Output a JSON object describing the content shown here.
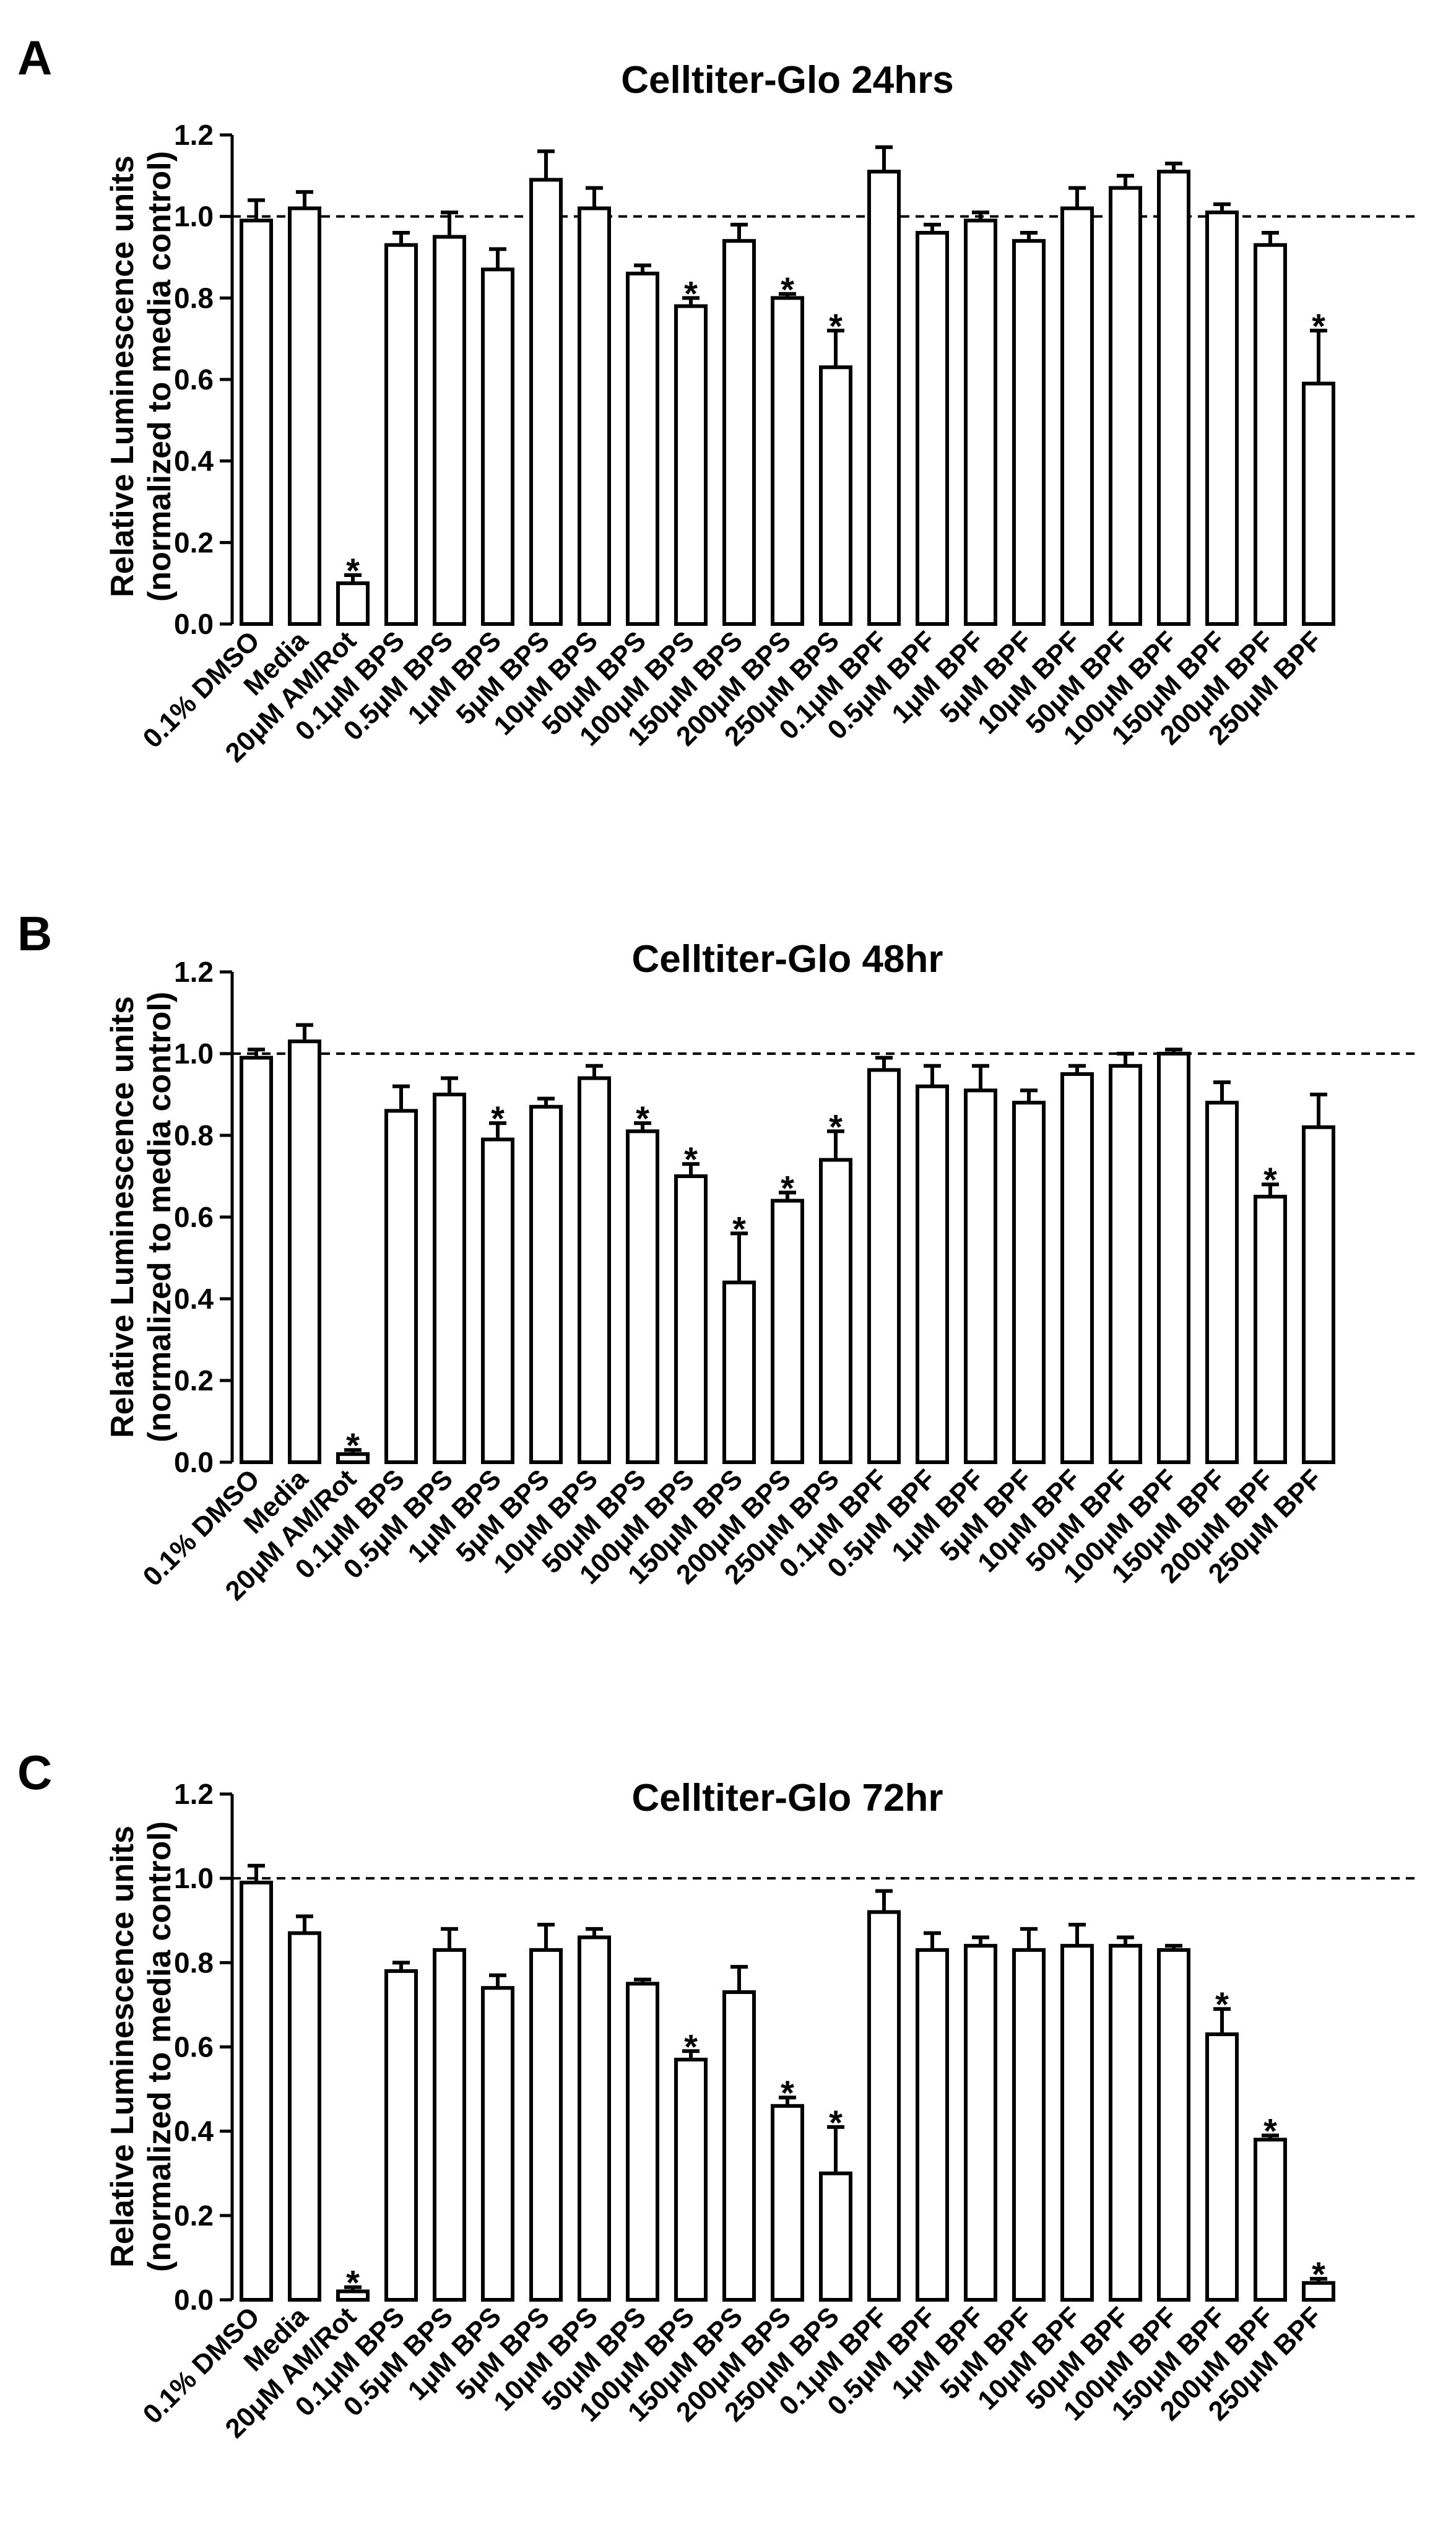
{
  "chart_data": [
    {
      "panel": "A",
      "type": "bar",
      "title": "Celltiter-Glo 24hrs",
      "ylabel": [
        "Relative Luminescence units",
        "(normalized to media control)"
      ],
      "xlabel": "",
      "ylim": [
        0,
        1.2
      ],
      "yticks": [
        "0.0",
        "0.2",
        "0.4",
        "0.6",
        "0.8",
        "1.0",
        "1.2"
      ],
      "reference_line": 1.0,
      "categories": [
        "0.1% DMSO",
        "Media",
        "20μM AM/Rot",
        "0.1μM BPS",
        "0.5μM BPS",
        "1μM BPS",
        "5μM BPS",
        "10μM BPS",
        "50μM BPS",
        "100μM BPS",
        "150μM BPS",
        "200μM BPS",
        "250μM BPS",
        "0.1μM BPF",
        "0.5μM BPF",
        "1μM BPF",
        "5μM BPF",
        "10μM BPF",
        "50μM BPF",
        "100μM BPF",
        "150μM BPF",
        "200μM BPF",
        "250μM BPF"
      ],
      "values": [
        0.99,
        1.02,
        0.1,
        0.93,
        0.95,
        0.87,
        1.09,
        1.02,
        0.86,
        0.78,
        0.94,
        0.8,
        0.63,
        1.11,
        0.96,
        0.99,
        0.94,
        1.02,
        1.07,
        1.11,
        1.01,
        0.93,
        0.59
      ],
      "errors": [
        0.05,
        0.04,
        0.02,
        0.03,
        0.06,
        0.05,
        0.07,
        0.05,
        0.02,
        0.02,
        0.04,
        0.01,
        0.09,
        0.06,
        0.02,
        0.02,
        0.02,
        0.05,
        0.03,
        0.02,
        0.02,
        0.03,
        0.13
      ],
      "significant": [
        false,
        false,
        true,
        false,
        false,
        false,
        false,
        false,
        false,
        true,
        false,
        true,
        true,
        false,
        false,
        false,
        false,
        false,
        false,
        false,
        false,
        false,
        true
      ],
      "sig_symbol": "*"
    },
    {
      "panel": "B",
      "type": "bar",
      "title": "Celltiter-Glo 48hr",
      "ylabel": [
        "Relative Luminescence units",
        "(normalized to media control)"
      ],
      "xlabel": "",
      "ylim": [
        0,
        1.2
      ],
      "yticks": [
        "0.0",
        "0.2",
        "0.4",
        "0.6",
        "0.8",
        "1.0",
        "1.2"
      ],
      "reference_line": 1.0,
      "categories": [
        "0.1% DMSO",
        "Media",
        "20μM AM/Rot",
        "0.1μM BPS",
        "0.5μM BPS",
        "1μM BPS",
        "5μM BPS",
        "10μM BPS",
        "50μM BPS",
        "100μM BPS",
        "150μM BPS",
        "200μM BPS",
        "250μM BPS",
        "0.1μM BPF",
        "0.5μM BPF",
        "1μM BPF",
        "5μM BPF",
        "10μM BPF",
        "50μM BPF",
        "100μM BPF",
        "150μM BPF",
        "200μM BPF",
        "250μM BPF"
      ],
      "values": [
        0.99,
        1.03,
        0.02,
        0.86,
        0.9,
        0.79,
        0.87,
        0.94,
        0.81,
        0.7,
        0.44,
        0.64,
        0.74,
        0.96,
        0.92,
        0.91,
        0.88,
        0.95,
        0.97,
        1.0,
        0.88,
        0.65,
        0.82
      ],
      "errors": [
        0.02,
        0.04,
        0.01,
        0.06,
        0.04,
        0.04,
        0.02,
        0.03,
        0.02,
        0.03,
        0.12,
        0.02,
        0.07,
        0.03,
        0.05,
        0.06,
        0.03,
        0.02,
        0.03,
        0.01,
        0.05,
        0.03,
        0.08
      ],
      "significant": [
        false,
        false,
        true,
        false,
        false,
        true,
        false,
        false,
        true,
        true,
        true,
        true,
        true,
        false,
        false,
        false,
        false,
        false,
        false,
        false,
        false,
        true,
        false
      ],
      "sig_symbol": "*"
    },
    {
      "panel": "C",
      "type": "bar",
      "title": "Celltiter-Glo 72hr",
      "ylabel": [
        "Relative Luminescence units",
        "(normalized to media control)"
      ],
      "xlabel": "",
      "ylim": [
        0,
        1.2
      ],
      "yticks": [
        "0.0",
        "0.2",
        "0.4",
        "0.6",
        "0.8",
        "1.0",
        "1.2"
      ],
      "reference_line": 1.0,
      "categories": [
        "0.1% DMSO",
        "Media",
        "20μM AM/Rot",
        "0.1μM BPS",
        "0.5μM BPS",
        "1μM BPS",
        "5μM BPS",
        "10μM BPS",
        "50μM BPS",
        "100μM BPS",
        "150μM BPS",
        "200μM BPS",
        "250μM BPS",
        "0.1μM BPF",
        "0.5μM BPF",
        "1μM BPF",
        "5μM BPF",
        "10μM BPF",
        "50μM BPF",
        "100μM BPF",
        "150μM BPF",
        "200μM BPF",
        "250μM BPF"
      ],
      "values": [
        0.99,
        0.87,
        0.02,
        0.78,
        0.83,
        0.74,
        0.83,
        0.86,
        0.75,
        0.57,
        0.73,
        0.46,
        0.3,
        0.92,
        0.83,
        0.84,
        0.83,
        0.84,
        0.84,
        0.83,
        0.63,
        0.38,
        0.04
      ],
      "errors": [
        0.04,
        0.04,
        0.01,
        0.02,
        0.05,
        0.03,
        0.06,
        0.02,
        0.01,
        0.02,
        0.06,
        0.02,
        0.11,
        0.05,
        0.04,
        0.02,
        0.05,
        0.05,
        0.02,
        0.01,
        0.06,
        0.01,
        0.01
      ],
      "significant": [
        false,
        false,
        true,
        false,
        false,
        false,
        false,
        false,
        false,
        true,
        false,
        true,
        true,
        false,
        false,
        false,
        false,
        false,
        false,
        false,
        true,
        true,
        true
      ],
      "sig_symbol": "*"
    }
  ]
}
